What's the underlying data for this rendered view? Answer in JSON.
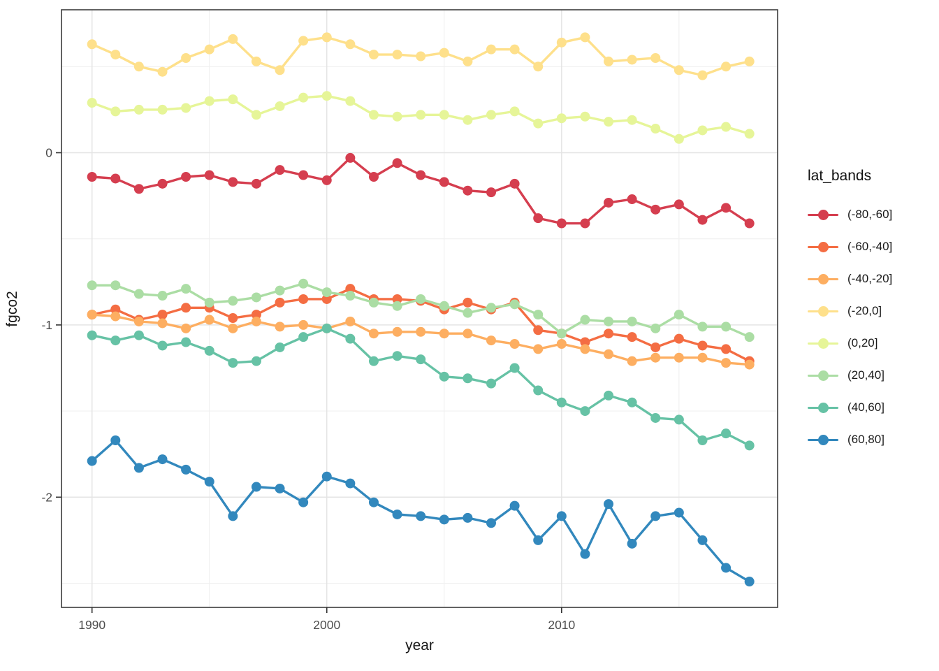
{
  "chart_data": {
    "type": "line",
    "title": "",
    "xlabel": "year",
    "ylabel": "fgco2",
    "legend_title": "lat_bands",
    "legend_position": "right",
    "grid": true,
    "x": [
      1990,
      1991,
      1992,
      1993,
      1994,
      1995,
      1996,
      1997,
      1998,
      1999,
      2000,
      2001,
      2002,
      2003,
      2004,
      2005,
      2006,
      2007,
      2008,
      2009,
      2010,
      2011,
      2012,
      2013,
      2014,
      2015,
      2016,
      2017,
      2018
    ],
    "series": [
      {
        "name": "(-80,-60]",
        "color": "#d53e4f",
        "values": [
          -0.14,
          -0.15,
          -0.21,
          -0.18,
          -0.14,
          -0.13,
          -0.17,
          -0.18,
          -0.1,
          -0.13,
          -0.16,
          -0.03,
          -0.14,
          -0.06,
          -0.13,
          -0.17,
          -0.22,
          -0.23,
          -0.18,
          -0.38,
          -0.41,
          -0.41,
          -0.29,
          -0.27,
          -0.33,
          -0.3,
          -0.39,
          -0.32,
          -0.41
        ]
      },
      {
        "name": "(-60,-40]",
        "color": "#f46d43",
        "values": [
          -0.94,
          -0.91,
          -0.97,
          -0.94,
          -0.9,
          -0.9,
          -0.96,
          -0.94,
          -0.87,
          -0.85,
          -0.85,
          -0.79,
          -0.85,
          -0.85,
          -0.86,
          -0.91,
          -0.87,
          -0.91,
          -0.87,
          -1.03,
          -1.05,
          -1.1,
          -1.05,
          -1.07,
          -1.13,
          -1.08,
          -1.12,
          -1.14,
          -1.21
        ]
      },
      {
        "name": "(-40,-20]",
        "color": "#fdae61",
        "values": [
          -0.94,
          -0.95,
          -0.98,
          -0.99,
          -1.02,
          -0.97,
          -1.02,
          -0.98,
          -1.01,
          -1.0,
          -1.02,
          -0.98,
          -1.05,
          -1.04,
          -1.04,
          -1.05,
          -1.05,
          -1.09,
          -1.11,
          -1.14,
          -1.11,
          -1.14,
          -1.17,
          -1.21,
          -1.19,
          -1.19,
          -1.19,
          -1.22,
          -1.23
        ]
      },
      {
        "name": "(-20,0]",
        "color": "#fee08b",
        "values": [
          0.63,
          0.57,
          0.5,
          0.47,
          0.55,
          0.6,
          0.66,
          0.53,
          0.48,
          0.65,
          0.67,
          0.63,
          0.57,
          0.57,
          0.56,
          0.58,
          0.53,
          0.6,
          0.6,
          0.5,
          0.64,
          0.67,
          0.53,
          0.54,
          0.55,
          0.48,
          0.45,
          0.5,
          0.53
        ]
      },
      {
        "name": "(0,20]",
        "color": "#e6f598",
        "values": [
          0.29,
          0.24,
          0.25,
          0.25,
          0.26,
          0.3,
          0.31,
          0.22,
          0.27,
          0.32,
          0.33,
          0.3,
          0.22,
          0.21,
          0.22,
          0.22,
          0.19,
          0.22,
          0.24,
          0.17,
          0.2,
          0.21,
          0.18,
          0.19,
          0.14,
          0.08,
          0.13,
          0.15,
          0.11
        ]
      },
      {
        "name": "(20,40]",
        "color": "#abdda4",
        "values": [
          -0.77,
          -0.77,
          -0.82,
          -0.83,
          -0.79,
          -0.87,
          -0.86,
          -0.84,
          -0.8,
          -0.76,
          -0.81,
          -0.83,
          -0.87,
          -0.89,
          -0.85,
          -0.89,
          -0.93,
          -0.9,
          -0.88,
          -0.94,
          -1.05,
          -0.97,
          -0.98,
          -0.98,
          -1.02,
          -0.94,
          -1.01,
          -1.01,
          -1.07
        ]
      },
      {
        "name": "(40,60]",
        "color": "#66c2a5",
        "values": [
          -1.06,
          -1.09,
          -1.06,
          -1.12,
          -1.1,
          -1.15,
          -1.22,
          -1.21,
          -1.13,
          -1.07,
          -1.02,
          -1.08,
          -1.21,
          -1.18,
          -1.2,
          -1.3,
          -1.31,
          -1.34,
          -1.25,
          -1.38,
          -1.45,
          -1.5,
          -1.41,
          -1.45,
          -1.54,
          -1.55,
          -1.67,
          -1.63,
          -1.7
        ]
      },
      {
        "name": "(60,80]",
        "color": "#3288bd",
        "values": [
          -1.79,
          -1.67,
          -1.83,
          -1.78,
          -1.84,
          -1.91,
          -2.11,
          -1.94,
          -1.95,
          -2.03,
          -1.88,
          -1.92,
          -2.03,
          -2.1,
          -2.11,
          -2.13,
          -2.12,
          -2.15,
          -2.05,
          -2.25,
          -2.11,
          -2.33,
          -2.04,
          -2.27,
          -2.11,
          -2.09,
          -2.25,
          -2.41,
          -2.49
        ]
      }
    ],
    "xlim": [
      1988.7,
      2019.2
    ],
    "ylim": [
      -2.64,
      0.83
    ],
    "x_major_ticks": [
      {
        "value": 1990,
        "label": "1990"
      },
      {
        "value": 2000,
        "label": "2000"
      },
      {
        "value": 2010,
        "label": "2010"
      }
    ],
    "x_minor_ticks": [
      1995,
      2005,
      2015
    ],
    "y_major_ticks": [
      {
        "value": 0,
        "label": "0"
      },
      {
        "value": -1,
        "label": "-1"
      },
      {
        "value": -2,
        "label": "-2"
      }
    ],
    "y_minor_ticks": [
      0.5,
      -0.5,
      -1.5,
      -2.5
    ],
    "styles": {
      "background": "#ffffff",
      "panel_background": "#ffffff",
      "grid_major_color": "#e4e4e4",
      "grid_minor_color": "#f0f0f0",
      "panel_border_color": "#3c3c3c",
      "tick_mark_color": "#333333",
      "tick_label_color": "#4d4d4d",
      "axis_title_color": "#1a1a1a",
      "line_width": 3.4,
      "point_radius": 7
    }
  }
}
